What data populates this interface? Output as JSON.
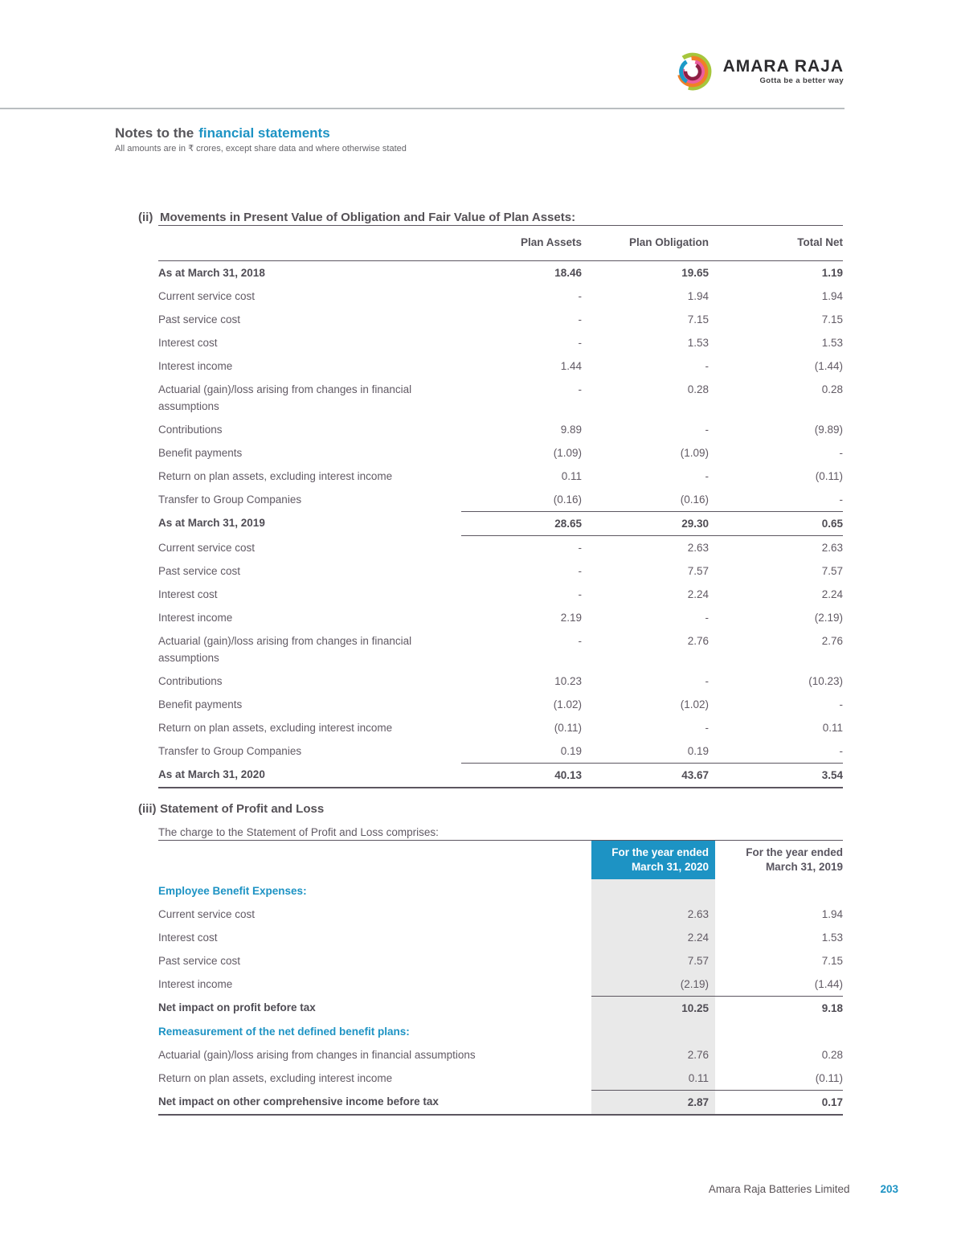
{
  "brand": {
    "name": "AMARA RAJA",
    "tagline": "Gotta be a better way",
    "logo_colors": [
      "#a6c63c",
      "#f07f26",
      "#ec5f9e",
      "#8e2044",
      "#1b9ac8"
    ]
  },
  "page_header": {
    "title_prefix": "Notes to the",
    "title_accent": "financial statements",
    "subtitle": "All amounts are in ₹ crores, except share data and where otherwise stated"
  },
  "colors": {
    "accent_blue": "#1d93c4",
    "column_shade": "#e9e9e9",
    "rule_gray": "#5c5660"
  },
  "section_ii": {
    "index": "(ii)",
    "title": "Movements in Present Value of Obligation and Fair Value of Plan Assets:",
    "columns": [
      "Plan Assets",
      "Plan Obligation",
      "Total Net"
    ],
    "rows": [
      {
        "label": "As at March 31, 2018",
        "values": [
          "18.46",
          "19.65",
          "1.19"
        ],
        "bold": true
      },
      {
        "label": "Current service cost",
        "values": [
          "-",
          "1.94",
          "1.94"
        ]
      },
      {
        "label": "Past service cost",
        "values": [
          "-",
          "7.15",
          "7.15"
        ]
      },
      {
        "label": "Interest cost",
        "values": [
          "-",
          "1.53",
          "1.53"
        ]
      },
      {
        "label": "Interest income",
        "values": [
          "1.44",
          "-",
          "(1.44)"
        ]
      },
      {
        "label": "Actuarial (gain)/loss arising from changes in financial assumptions",
        "values": [
          "-",
          "0.28",
          "0.28"
        ]
      },
      {
        "label": "Contributions",
        "values": [
          "9.89",
          "-",
          "(9.89)"
        ]
      },
      {
        "label": "Benefit payments",
        "values": [
          "(1.09)",
          "(1.09)",
          "-"
        ]
      },
      {
        "label": "Return on plan assets, excluding interest income",
        "values": [
          "0.11",
          "-",
          "(0.11)"
        ]
      },
      {
        "label": "Transfer to Group Companies",
        "values": [
          "(0.16)",
          "(0.16)",
          "-"
        ]
      },
      {
        "label": "As at March 31, 2019",
        "values": [
          "28.65",
          "29.30",
          "0.65"
        ],
        "bold": true,
        "rule_above": true,
        "rule_below": true
      },
      {
        "label": "Current service cost",
        "values": [
          "-",
          "2.63",
          "2.63"
        ]
      },
      {
        "label": "Past service cost",
        "values": [
          "-",
          "7.57",
          "7.57"
        ]
      },
      {
        "label": "Interest cost",
        "values": [
          "-",
          "2.24",
          "2.24"
        ]
      },
      {
        "label": "Interest income",
        "values": [
          "2.19",
          "-",
          "(2.19)"
        ]
      },
      {
        "label": "Actuarial (gain)/loss arising from changes in financial assumptions",
        "values": [
          "-",
          "2.76",
          "2.76"
        ]
      },
      {
        "label": "Contributions",
        "values": [
          "10.23",
          "-",
          "(10.23)"
        ]
      },
      {
        "label": "Benefit payments",
        "values": [
          "(1.02)",
          "(1.02)",
          "-"
        ]
      },
      {
        "label": "Return on plan assets, excluding interest income",
        "values": [
          "(0.11)",
          "-",
          "0.11"
        ]
      },
      {
        "label": "Transfer to Group Companies",
        "values": [
          "0.19",
          "0.19",
          "-"
        ]
      },
      {
        "label": "As at March 31, 2020",
        "values": [
          "40.13",
          "43.67",
          "3.54"
        ],
        "bold": true,
        "rule_above": true
      }
    ]
  },
  "section_iii": {
    "index": "(iii)",
    "title": "Statement of Profit and Loss",
    "intro": "The charge to the Statement of Profit and Loss comprises:",
    "col2020": {
      "line1": "For the year ended",
      "line2": "March 31, 2020"
    },
    "col2019": {
      "line1": "For the year ended",
      "line2": "March 31, 2019"
    },
    "rows": [
      {
        "label": "Employee Benefit Expenses:",
        "accent": true,
        "values": [
          "",
          ""
        ]
      },
      {
        "label": "Current service cost",
        "values": [
          "2.63",
          "1.94"
        ]
      },
      {
        "label": "Interest cost",
        "values": [
          "2.24",
          "1.53"
        ]
      },
      {
        "label": "Past service cost",
        "values": [
          "7.57",
          "7.15"
        ]
      },
      {
        "label": "Interest income",
        "values": [
          "(2.19)",
          "(1.44)"
        ]
      },
      {
        "label": "Net impact on profit before tax",
        "values": [
          "10.25",
          "9.18"
        ],
        "bold": true,
        "rule_above": true
      },
      {
        "label": "Remeasurement of the net defined benefit plans:",
        "accent": true,
        "values": [
          "",
          ""
        ]
      },
      {
        "label": "Actuarial (gain)/loss arising from changes in financial assumptions",
        "values": [
          "2.76",
          "0.28"
        ]
      },
      {
        "label": "Return on plan assets, excluding interest income",
        "values": [
          "0.11",
          "(0.11)"
        ]
      },
      {
        "label": "Net impact on other comprehensive income before tax",
        "values": [
          "2.87",
          "0.17"
        ],
        "bold": true,
        "rule_above": true
      }
    ]
  },
  "footer": {
    "company": "Amara Raja Batteries Limited",
    "page": "203"
  }
}
